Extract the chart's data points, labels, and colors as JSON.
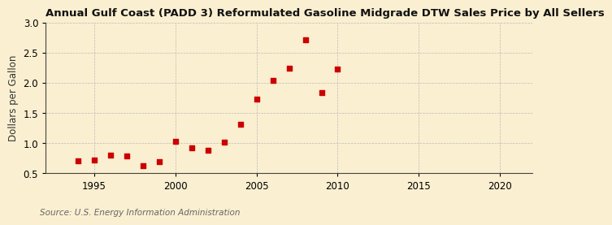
{
  "title": "Annual Gulf Coast (PADD 3) Reformulated Gasoline Midgrade DTW Sales Price by All Sellers",
  "ylabel": "Dollars per Gallon",
  "source": "Source: U.S. Energy Information Administration",
  "background_color": "#faefd0",
  "marker_color": "#cc0000",
  "years": [
    1994,
    1995,
    1996,
    1997,
    1998,
    1999,
    2000,
    2001,
    2002,
    2003,
    2004,
    2005,
    2006,
    2007,
    2008,
    2009,
    2010
  ],
  "values": [
    0.71,
    0.72,
    0.8,
    0.79,
    0.63,
    0.7,
    1.03,
    0.93,
    0.89,
    1.02,
    1.32,
    1.74,
    2.04,
    2.25,
    2.72,
    1.84,
    2.23
  ],
  "xlim": [
    1992,
    2022
  ],
  "ylim": [
    0.5,
    3.0
  ],
  "yticks": [
    0.5,
    1.0,
    1.5,
    2.0,
    2.5,
    3.0
  ],
  "xticks": [
    1995,
    2000,
    2005,
    2010,
    2015,
    2020
  ],
  "title_fontsize": 9.5,
  "label_fontsize": 8.5,
  "source_fontsize": 7.5
}
